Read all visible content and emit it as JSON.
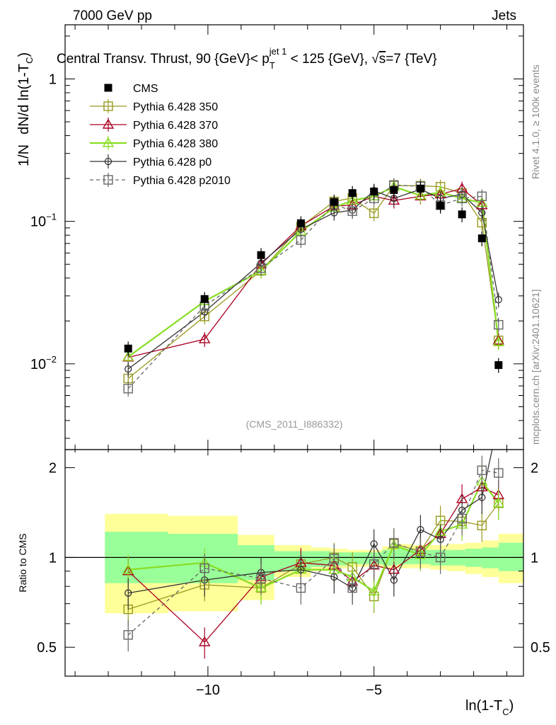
{
  "chart_data": {
    "type": "line",
    "header_left": "7000 GeV pp",
    "header_right": "Jets",
    "title": "Central Transv. Thrust, 90 {GeV}< p_T^{jet 1} < 125 {GeV}, √s=7 {TeV}",
    "title_parts": [
      "Central Transv. Thrust, 90 {GeV}< p",
      "T",
      "jet 1",
      " < 125 {GeV}, √",
      "s",
      "=7 {TeV}"
    ],
    "ylabel_main": "1/N   dN/d ln(1-T_C)",
    "ylabel_main_parts": [
      "1/N",
      "dN/d ln(1-T",
      "C",
      ")"
    ],
    "ylabel_ratio": "Ratio to CMS",
    "xlabel": "ln(1-T_C)",
    "xlabel_parts": [
      "ln(1-T",
      "C",
      ")"
    ],
    "watermark": "(CMS_2011_I886332)",
    "side_label_top": "Rivet 4.1.0, ≥ 100k events",
    "side_label_bottom": "mcplots.cern.ch [arXiv:2401.10621]",
    "x_range": [
      -14.3,
      -0.5
    ],
    "y_range_main": [
      0.0025,
      2.4
    ],
    "y_range_ratio": [
      0.4,
      2.3
    ],
    "x_ticks": [
      -10,
      -5
    ],
    "x_tick_labels": [
      "−10",
      "−5"
    ],
    "y_ticks_main": [
      {
        "v": 1,
        "base": "1",
        "exp": ""
      },
      {
        "v": 0.1,
        "base": "10",
        "exp": "−1"
      },
      {
        "v": 0.01,
        "base": "10",
        "exp": "−2"
      }
    ],
    "y_ticks_ratio": [
      {
        "v": 0.5,
        "label": "0.5"
      },
      {
        "v": 1,
        "label": "1"
      },
      {
        "v": 2,
        "label": "2"
      }
    ],
    "band_edges": [
      -13.1,
      -11.2,
      -9.1,
      -8.0,
      -6.9,
      -6.3,
      -5.8,
      -5.2,
      -4.75,
      -4.3,
      -3.85,
      -3.3,
      -2.8,
      -2.25,
      -1.75,
      -1.25,
      -0.5
    ],
    "band_green": [
      [
        0.82,
        1.22
      ],
      [
        0.82,
        1.2
      ],
      [
        0.84,
        1.1
      ],
      [
        0.9,
        1.05
      ],
      [
        0.93,
        1.05
      ],
      [
        0.94,
        1.04
      ],
      [
        0.95,
        1.04
      ],
      [
        0.95,
        1.04
      ],
      [
        0.94,
        1.06
      ],
      [
        0.95,
        1.07
      ],
      [
        0.95,
        1.06
      ],
      [
        0.94,
        1.06
      ],
      [
        0.94,
        1.06
      ],
      [
        0.93,
        1.07
      ],
      [
        0.92,
        1.08
      ],
      [
        0.9,
        1.12
      ]
    ],
    "band_yellow": [
      [
        0.65,
        1.4
      ],
      [
        0.66,
        1.38
      ],
      [
        0.72,
        1.19
      ],
      [
        0.86,
        1.1
      ],
      [
        0.9,
        1.08
      ],
      [
        0.92,
        1.07
      ],
      [
        0.93,
        1.06
      ],
      [
        0.93,
        1.06
      ],
      [
        0.92,
        1.09
      ],
      [
        0.92,
        1.11
      ],
      [
        0.92,
        1.1
      ],
      [
        0.91,
        1.1
      ],
      [
        0.9,
        1.11
      ],
      [
        0.88,
        1.12
      ],
      [
        0.86,
        1.14
      ],
      [
        0.82,
        1.2
      ]
    ],
    "series": [
      {
        "name": "CMS",
        "color": "#000000",
        "marker": "square-filled",
        "line": "none",
        "x": [
          -12.4,
          -10.1,
          -8.4,
          -7.2,
          -6.2,
          -5.65,
          -5.0,
          -4.4,
          -3.6,
          -3.0,
          -2.35,
          -1.75,
          -1.25
        ],
        "y": [
          0.0128,
          0.0285,
          0.058,
          0.097,
          0.137,
          0.158,
          0.162,
          0.166,
          0.17,
          0.129,
          0.112,
          0.076,
          0.0098
        ]
      },
      {
        "name": "Pythia 6.428 350",
        "color": "#999920",
        "marker": "square-open",
        "line": "solid",
        "x": [
          -12.4,
          -10.1,
          -8.4,
          -7.2,
          -6.2,
          -5.65,
          -5.0,
          -4.4,
          -3.6,
          -3.0,
          -2.35,
          -1.75,
          -1.25
        ],
        "y": [
          0.0079,
          0.0215,
          0.045,
          0.092,
          0.138,
          0.146,
          0.114,
          0.178,
          0.178,
          0.175,
          0.158,
          0.098,
          0.0146
        ],
        "ratio": [
          0.67,
          0.81,
          0.79,
          0.95,
          1.0,
          0.93,
          0.74,
          1.11,
          1.05,
          1.33,
          1.32,
          1.28,
          1.52
        ]
      },
      {
        "name": "Pythia 6.428 370",
        "color": "#aa0022",
        "marker": "triangle-open",
        "line": "solid",
        "x": [
          -12.4,
          -10.1,
          -8.4,
          -7.2,
          -6.2,
          -5.65,
          -5.0,
          -4.4,
          -3.6,
          -3.0,
          -2.35,
          -1.75,
          -1.25
        ],
        "y": [
          0.0111,
          0.0149,
          0.05,
          0.093,
          0.128,
          0.13,
          0.15,
          0.14,
          0.15,
          0.155,
          0.17,
          0.13,
          0.0146
        ],
        "ratio": [
          0.9,
          0.52,
          0.86,
          0.96,
          0.94,
          0.83,
          0.94,
          0.91,
          1.06,
          1.2,
          1.57,
          1.72,
          1.62
        ]
      },
      {
        "name": "Pythia 6.428 380",
        "color": "#88dd22",
        "marker": "triangle-open",
        "line": "solid",
        "x": [
          -12.4,
          -10.1,
          -8.4,
          -7.2,
          -6.2,
          -5.65,
          -5.0,
          -4.4,
          -3.6,
          -3.0,
          -2.35,
          -1.75,
          -1.25
        ],
        "y": [
          0.0112,
          0.0275,
          0.045,
          0.085,
          0.125,
          0.14,
          0.15,
          0.175,
          0.152,
          0.16,
          0.145,
          0.135,
          0.0142
        ],
        "ratio": [
          0.91,
          0.96,
          0.79,
          0.91,
          0.91,
          0.86,
          0.77,
          1.1,
          1.02,
          1.22,
          1.29,
          1.8,
          1.52
        ]
      },
      {
        "name": "Pythia 6.428 p0",
        "color": "#333333",
        "marker": "circle-open",
        "line": "solid",
        "x": [
          -12.4,
          -10.1,
          -8.4,
          -7.2,
          -6.2,
          -5.65,
          -5.0,
          -4.4,
          -3.6,
          -3.0,
          -2.35,
          -1.75,
          -1.25
        ],
        "y": [
          0.0092,
          0.0232,
          0.051,
          0.088,
          0.115,
          0.12,
          0.164,
          0.145,
          0.168,
          0.145,
          0.155,
          0.115,
          0.0282
        ],
        "ratio": [
          0.76,
          0.84,
          0.89,
          0.91,
          0.86,
          0.79,
          1.11,
          0.84,
          1.24,
          1.15,
          1.44,
          1.59,
          2.9
        ]
      },
      {
        "name": "Pythia 6.428 p2010",
        "color": "#666666",
        "marker": "square-open",
        "line": "dashed",
        "x": [
          -12.4,
          -10.1,
          -8.4,
          -7.2,
          -6.2,
          -5.65,
          -5.0,
          -4.4,
          -3.6,
          -3.0,
          -2.35,
          -1.75,
          -1.25
        ],
        "y": [
          0.0067,
          0.0255,
          0.047,
          0.074,
          0.132,
          0.118,
          0.145,
          0.18,
          0.176,
          0.13,
          0.145,
          0.15,
          0.0188
        ],
        "ratio": [
          0.55,
          0.92,
          0.85,
          0.79,
          0.99,
          0.79,
          0.95,
          1.12,
          1.04,
          1.0,
          1.35,
          1.96,
          1.92
        ]
      }
    ]
  }
}
